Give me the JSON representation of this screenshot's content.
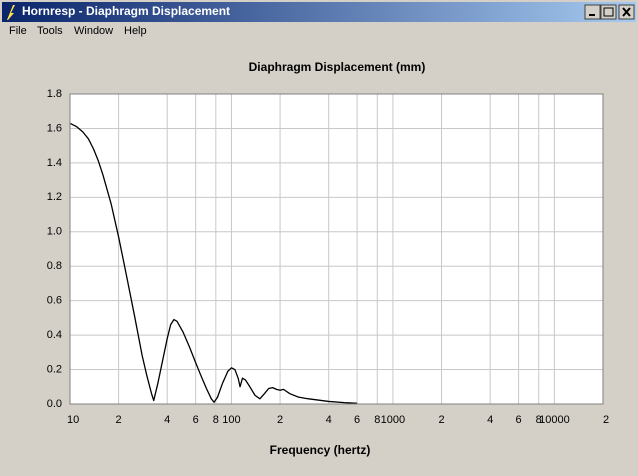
{
  "window_title": "Hornresp - Diaphragm Displacement",
  "menu": [
    "File",
    "Tools",
    "Window",
    "Help"
  ],
  "chart_data": {
    "type": "line",
    "title": "Diaphragm Displacement (mm)",
    "x_label": "Frequency (hertz)",
    "log_x": true,
    "grid": true,
    "color": "#000000",
    "xlim": [
      10,
      20000
    ],
    "xticks": [
      10,
      {
        "value": 20,
        "label": "2"
      },
      {
        "value": 40,
        "label": "4"
      },
      {
        "value": 60,
        "label": "6"
      },
      {
        "value": 80,
        "label": "8"
      },
      100,
      {
        "value": 200,
        "label": "2"
      },
      {
        "value": 400,
        "label": "4"
      },
      {
        "value": 600,
        "label": "6"
      },
      {
        "value": 800,
        "label": "8"
      },
      1000,
      {
        "value": 2000,
        "label": "2"
      },
      {
        "value": 4000,
        "label": "4"
      },
      {
        "value": 6000,
        "label": "6"
      },
      {
        "value": 8000,
        "label": "8"
      },
      10000,
      {
        "value": 20000,
        "label": "2"
      }
    ],
    "ylim": [
      0,
      1.8
    ],
    "yticks": [
      {
        "value": 0,
        "label": "0.0"
      },
      0.2,
      0.4,
      0.6,
      0.8,
      {
        "value": 1,
        "label": "1.0"
      },
      1.2,
      1.4,
      1.6,
      1.8
    ],
    "x": [
      10,
      11,
      12,
      13,
      14,
      15,
      16,
      18,
      20,
      22,
      25,
      28,
      30,
      32,
      33,
      35,
      38,
      40,
      42,
      44,
      46,
      50,
      55,
      60,
      65,
      70,
      75,
      78,
      82,
      88,
      95,
      100,
      105,
      110,
      113,
      117,
      122,
      130,
      140,
      150,
      160,
      170,
      180,
      190,
      200,
      210,
      230,
      260,
      300,
      400,
      500,
      600
    ],
    "values": [
      1.63,
      1.61,
      1.58,
      1.54,
      1.48,
      1.41,
      1.33,
      1.16,
      0.97,
      0.78,
      0.52,
      0.28,
      0.16,
      0.06,
      0.02,
      0.12,
      0.28,
      0.38,
      0.46,
      0.49,
      0.48,
      0.42,
      0.33,
      0.24,
      0.16,
      0.09,
      0.03,
      0.01,
      0.04,
      0.12,
      0.19,
      0.21,
      0.2,
      0.15,
      0.1,
      0.15,
      0.14,
      0.1,
      0.05,
      0.03,
      0.06,
      0.09,
      0.095,
      0.085,
      0.08,
      0.085,
      0.06,
      0.04,
      0.03,
      0.015,
      0.008,
      0.004
    ]
  }
}
